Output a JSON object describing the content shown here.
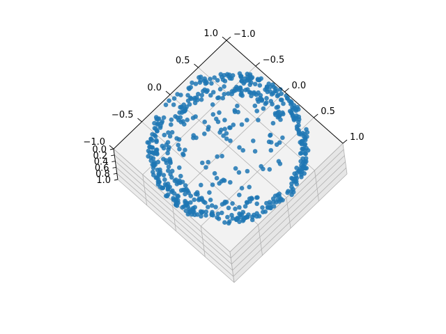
{
  "chart_data": {
    "type": "scatter",
    "projection": "3d",
    "title": "",
    "xlabel": "",
    "ylabel": "",
    "zlabel": "",
    "x_ticks": [
      "1.0",
      "0.5",
      "0.0",
      "−0.5",
      "−1.0"
    ],
    "y_ticks": [
      "−1.0",
      "−0.5",
      "0.0",
      "0.5",
      "1.0"
    ],
    "z_ticks": [
      "0.0",
      "0.2",
      "0.4",
      "0.6",
      "0.8",
      "1.0"
    ],
    "xlim": [
      -1.0,
      1.0
    ],
    "ylim": [
      -1.0,
      1.0
    ],
    "zlim": [
      0.0,
      1.0
    ],
    "grid": true,
    "legend": "none",
    "marker_color": "#1f77b4",
    "pane_color": "#f2f2f2",
    "grid_color": "#b0b0b0",
    "description_of_points": "points lie on the outer rim of a unit disk and along a partial ring, with a sparse scattering in the interior"
  }
}
